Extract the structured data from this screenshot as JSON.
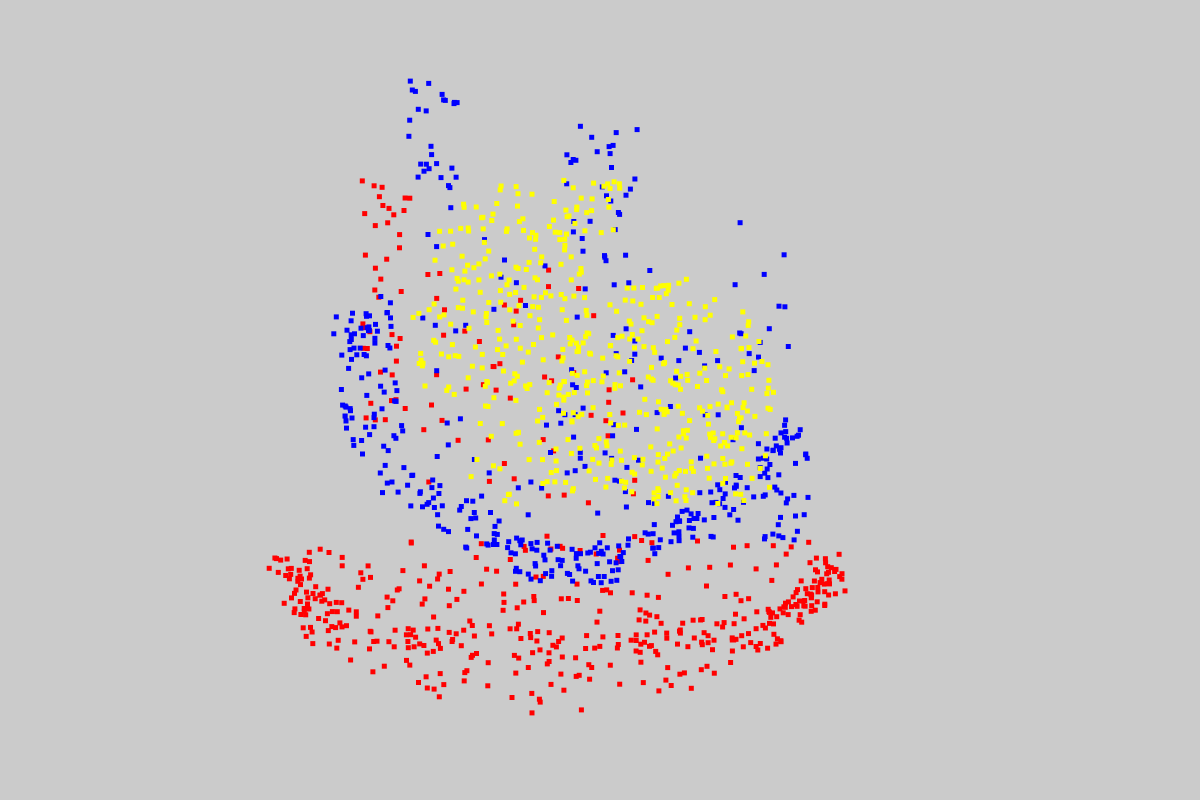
{
  "scene": {
    "background": "#cbcbcb",
    "point_colors": {
      "head_back": "#0000ff",
      "front_face": "#ffff00",
      "base": "#ff0000"
    }
  }
}
